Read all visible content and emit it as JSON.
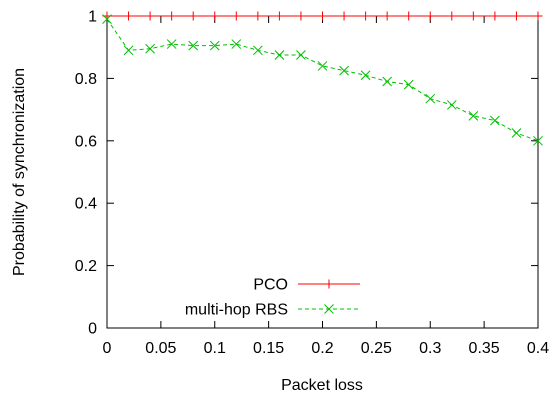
{
  "chart_data": {
    "type": "line",
    "xlabel": "Packet loss",
    "ylabel": "Probability of synchronization",
    "xlim": [
      0,
      0.4
    ],
    "ylim": [
      0,
      1
    ],
    "xticks": [
      "0",
      "0.05",
      "0.1",
      "0.15",
      "0.2",
      "0.25",
      "0.3",
      "0.35",
      "0.4"
    ],
    "yticks": [
      "0",
      "0.2",
      "0.4",
      "0.6",
      "0.8",
      "1"
    ],
    "grid": false,
    "legend_position": "bottom-center",
    "series": [
      {
        "name": "PCO",
        "color": "#ff0000",
        "line_style": "solid",
        "marker": "plus",
        "x": [
          0,
          0.02,
          0.04,
          0.06,
          0.08,
          0.1,
          0.12,
          0.14,
          0.16,
          0.18,
          0.2,
          0.22,
          0.24,
          0.26,
          0.28,
          0.3,
          0.32,
          0.34,
          0.36,
          0.38,
          0.4
        ],
        "y": [
          1,
          1,
          1,
          1,
          1,
          1,
          1,
          1,
          1,
          1,
          1,
          1,
          1,
          1,
          1,
          1,
          1,
          1,
          1,
          1,
          1
        ]
      },
      {
        "name": "multi-hop RBS",
        "color": "#00c000",
        "line_style": "dashed",
        "marker": "x",
        "x": [
          0,
          0.02,
          0.04,
          0.06,
          0.08,
          0.1,
          0.12,
          0.14,
          0.16,
          0.18,
          0.2,
          0.22,
          0.24,
          0.26,
          0.28,
          0.3,
          0.32,
          0.34,
          0.36,
          0.38,
          0.4
        ],
        "y": [
          0.99,
          0.89,
          0.895,
          0.91,
          0.905,
          0.905,
          0.91,
          0.89,
          0.875,
          0.875,
          0.84,
          0.825,
          0.81,
          0.79,
          0.78,
          0.735,
          0.715,
          0.68,
          0.665,
          0.625,
          0.6
        ]
      }
    ]
  }
}
